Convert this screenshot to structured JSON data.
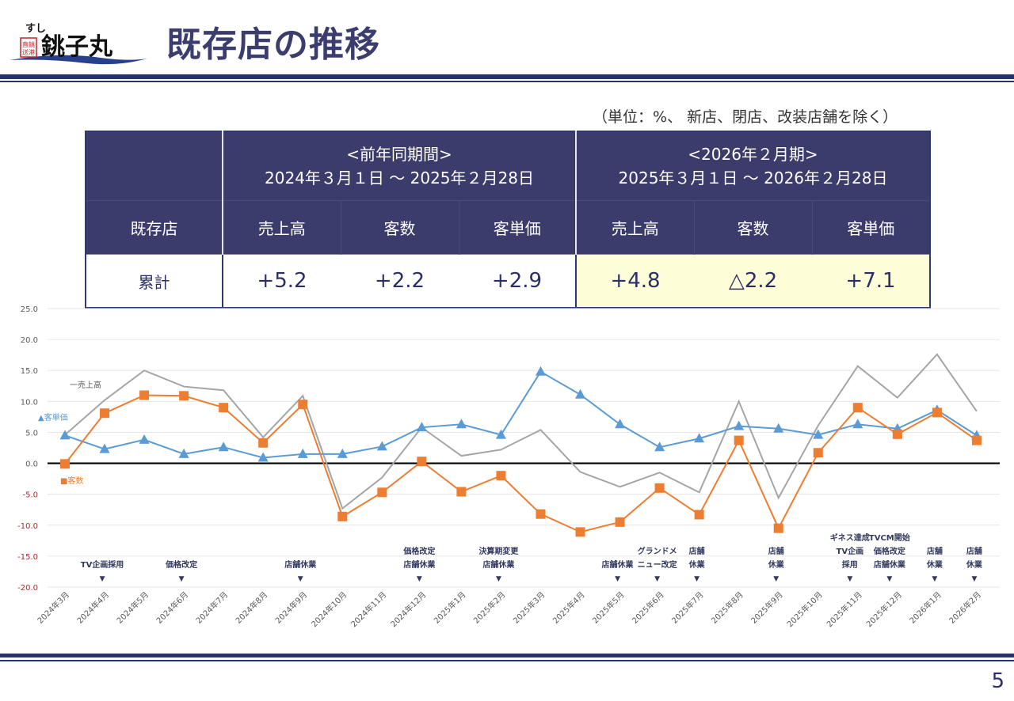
{
  "header": {
    "logo_text": "すし 銚子丸",
    "logo_stamp": "銚子港直送",
    "title": "既存店の推移"
  },
  "unit_note": "（単位：%、 新店、閉店、改装店舗を除く）",
  "table": {
    "corner": "",
    "row_label_header": "既存店",
    "periods": [
      {
        "name": "<前年同期間>",
        "range": "2024年３月１日 ～ 2025年２月28日"
      },
      {
        "name": "<2026年２月期>",
        "range": "2025年３月１日 ～ 2026年２月28日"
      }
    ],
    "columns": [
      "売上高",
      "客数",
      "客単価",
      "売上高",
      "客数",
      "客単価"
    ],
    "rows": [
      {
        "label": "累計",
        "values": [
          "+5.2",
          "+2.2",
          "+2.9",
          "+4.8",
          "△2.2",
          "+7.1"
        ]
      }
    ],
    "highlight_color": "#fdfdd8",
    "header_color": "#3b3c6b"
  },
  "chart_data": {
    "type": "line",
    "title": "",
    "xlabel": "",
    "ylabel": "",
    "ylim": [
      -20,
      25
    ],
    "yticks": [
      "25.0",
      "20.0",
      "15.0",
      "10.0",
      "5.0",
      "0.0",
      "-5.0",
      "-10.0",
      "-15.0",
      "-20.0"
    ],
    "grid": true,
    "categories": [
      "2024年3月",
      "2024年4月",
      "2024年5月",
      "2024年6月",
      "2024年7月",
      "2024年8月",
      "2024年9月",
      "2024年10月",
      "2024年11月",
      "2024年12月",
      "2025年1月",
      "2025年2月",
      "2025年3月",
      "2025年4月",
      "2025年5月",
      "2025年6月",
      "2025年7月",
      "2025年8月",
      "2025年9月",
      "2025年10月",
      "2025年11月",
      "2025年12月",
      "2026年1月",
      "2026年2月"
    ],
    "series": [
      {
        "name": "一売上高",
        "color": "#a5a5a5",
        "marker": "none",
        "values": [
          4.6,
          10.2,
          15.0,
          12.4,
          11.8,
          4.2,
          10.9,
          -7.3,
          -2.3,
          5.8,
          1.2,
          2.2,
          5.4,
          -1.4,
          -3.8,
          -1.5,
          -4.7,
          10.0,
          -5.6,
          6.1,
          15.7,
          10.6,
          17.6,
          8.4
        ]
      },
      {
        "name": "▲客単価",
        "color": "#5b9bd5",
        "marker": "triangle",
        "values": [
          4.5,
          2.3,
          3.8,
          1.5,
          2.6,
          0.9,
          1.5,
          1.5,
          2.7,
          5.8,
          6.3,
          4.6,
          14.8,
          11.1,
          6.3,
          2.6,
          4.0,
          6.0,
          5.6,
          4.6,
          6.3,
          5.6,
          8.6,
          4.5
        ]
      },
      {
        "name": "■客数",
        "color": "#ed7d31",
        "marker": "square",
        "values": [
          -0.1,
          8.1,
          11.0,
          10.9,
          9.0,
          3.3,
          9.5,
          -8.6,
          -4.7,
          0.3,
          -4.6,
          -2.0,
          -8.2,
          -11.1,
          -9.5,
          -4.0,
          -8.3,
          3.7,
          -10.5,
          1.7,
          9.0,
          4.7,
          8.2,
          3.7
        ]
      }
    ],
    "annotations": [
      {
        "month": "2024年4月",
        "lines": [
          "TV企画採用"
        ]
      },
      {
        "month": "2024年6月",
        "lines": [
          "価格改定"
        ]
      },
      {
        "month": "2024年9月",
        "lines": [
          "店舗休業"
        ]
      },
      {
        "month": "2024年12月",
        "lines": [
          "価格改定",
          "店舗休業"
        ]
      },
      {
        "month": "2025年2月",
        "lines": [
          "決算期変更",
          "店舗休業"
        ]
      },
      {
        "month": "2025年5月",
        "lines": [
          "店舗休業"
        ]
      },
      {
        "month": "2025年6月",
        "lines": [
          "グランドメ",
          "ニュー改定"
        ]
      },
      {
        "month": "2025年7月",
        "lines": [
          "店舗",
          "休業"
        ]
      },
      {
        "month": "2025年9月",
        "lines": [
          "店舗",
          "休業"
        ]
      },
      {
        "month": "2025年11月",
        "lines": [
          "ギネス達成",
          "TV企画",
          "採用"
        ]
      },
      {
        "month": "2025年12月",
        "lines": [
          "TVCM開始",
          "価格改定",
          "店舗休業"
        ]
      },
      {
        "month": "2026年1月",
        "lines": [
          "店舗",
          "休業"
        ]
      },
      {
        "month": "2026年2月",
        "lines": [
          "店舗",
          "休業"
        ]
      }
    ],
    "annotation_marker": "▼"
  },
  "page_number": "5"
}
